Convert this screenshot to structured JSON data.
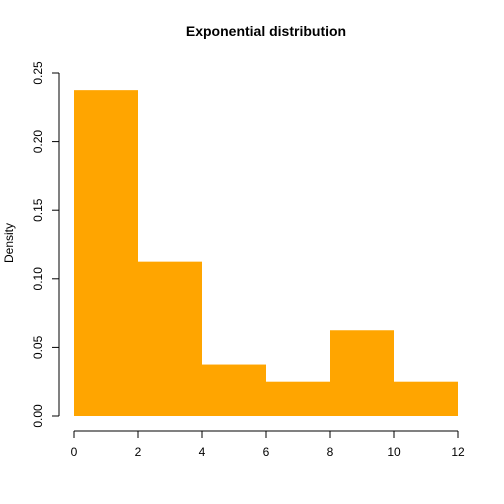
{
  "chart_data": {
    "type": "bar",
    "title": "Exponential distribution",
    "xlabel": "",
    "ylabel": "Density",
    "bin_edges": [
      0,
      2,
      4,
      6,
      8,
      10,
      12
    ],
    "values": [
      0.2375,
      0.1125,
      0.0375,
      0.025,
      0.0625,
      0.025
    ],
    "xlim": [
      0,
      12
    ],
    "ylim": [
      0,
      0.25
    ],
    "x_ticks": [
      0,
      2,
      4,
      6,
      8,
      10,
      12
    ],
    "x_tick_labels": [
      "0",
      "2",
      "4",
      "6",
      "8",
      "10",
      "12"
    ],
    "y_ticks": [
      0,
      0.05,
      0.1,
      0.15,
      0.2,
      0.25
    ],
    "y_tick_labels": [
      "0.00",
      "0.05",
      "0.10",
      "0.15",
      "0.20",
      "0.25"
    ],
    "bar_color": "#FFA500",
    "grid": false
  }
}
